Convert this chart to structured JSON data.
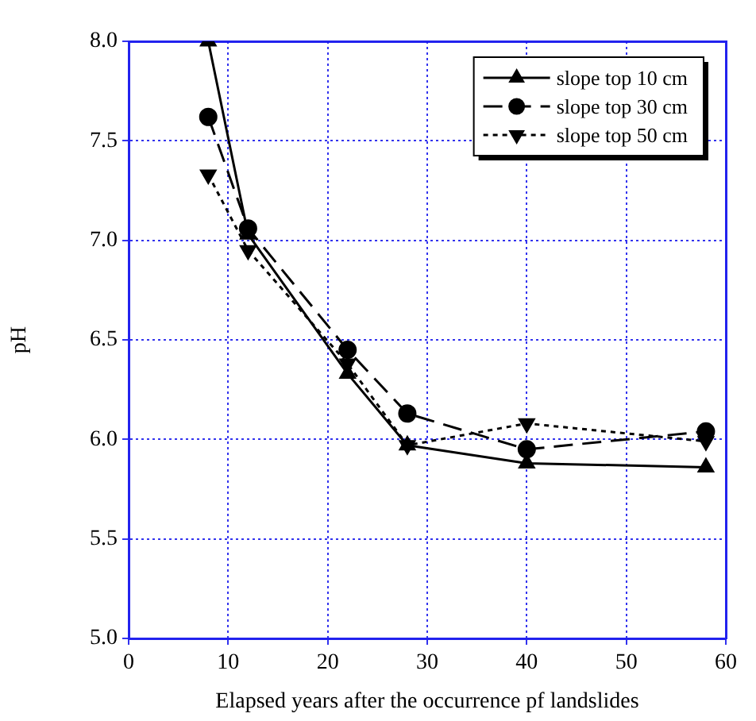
{
  "chart_data": {
    "type": "line",
    "xlabel": "Elapsed years after the occurrence pf landslides",
    "ylabel": "pH",
    "x": [
      8,
      12,
      22,
      28,
      40,
      58
    ],
    "series": [
      {
        "name": "slope top 10 cm",
        "color": "#000000",
        "values": [
          8.0,
          7.03,
          6.33,
          5.97,
          5.88,
          5.86
        ],
        "marker": "triangle",
        "line_style": "solid"
      },
      {
        "name": "slope top 30 cm",
        "color": "#000000",
        "values": [
          7.62,
          7.06,
          6.45,
          6.13,
          5.95,
          6.04
        ],
        "marker": "circle",
        "line_style": "dashed"
      },
      {
        "name": "slope top 50 cm",
        "color": "#000000",
        "values": [
          7.33,
          6.95,
          6.38,
          5.97,
          6.08,
          5.99
        ],
        "marker": "triangle-down",
        "line_style": "dotted"
      }
    ],
    "xlim": [
      0,
      60
    ],
    "xticks": [
      0,
      10,
      20,
      30,
      40,
      50,
      60
    ],
    "ylim": [
      5.0,
      8.0
    ],
    "yticks": [
      {
        "value": 5.0,
        "label": "5.0"
      },
      {
        "value": 5.5,
        "label": "5.5"
      },
      {
        "value": 6.0,
        "label": "6.0"
      },
      {
        "value": 6.5,
        "label": "6.5"
      },
      {
        "value": 7.0,
        "label": "7.0"
      },
      {
        "value": 7.5,
        "label": "7.5"
      },
      {
        "value": 8.0,
        "label": "8.0"
      }
    ],
    "grid": true,
    "legend": "top right"
  }
}
